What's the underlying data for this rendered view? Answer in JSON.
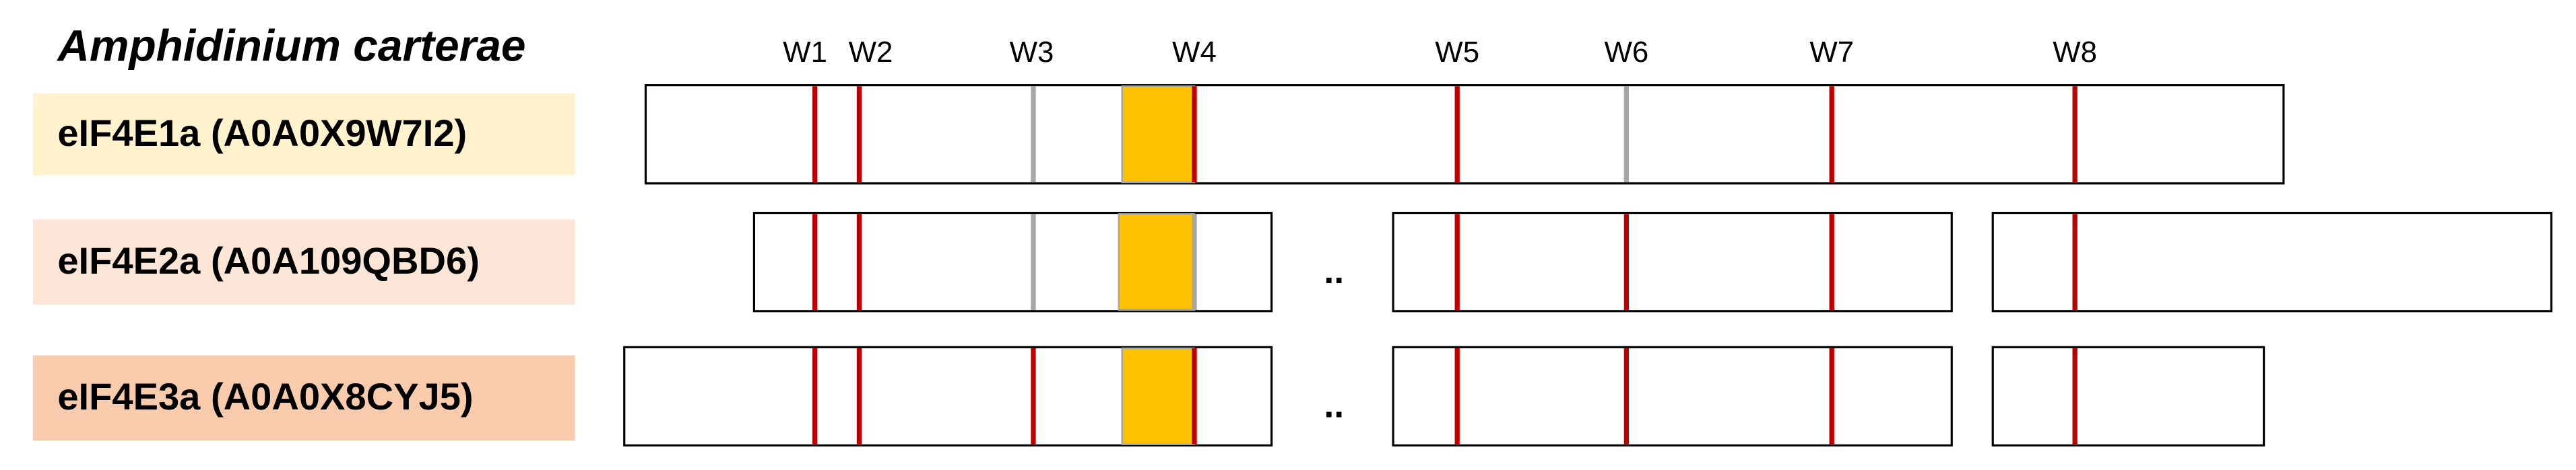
{
  "title": "Amphidinium carterae",
  "sites": [
    "W1",
    "W2",
    "W3",
    "W4",
    "W5",
    "W6",
    "W7",
    "W8"
  ],
  "rows": [
    {
      "label": "eIF4E1a (A0A0X9W7I2)",
      "color": "#fff2cc",
      "site_colors": [
        "#c00000",
        "#c00000",
        "#a6a6a6",
        "#c00000",
        "#c00000",
        "#a6a6a6",
        "#c00000",
        "#c00000"
      ]
    },
    {
      "label": "eIF4E2a (A0A109QBD6)",
      "color": "#fbe5d6",
      "ellipsis": "..",
      "site_colors": [
        "#c00000",
        "#c00000",
        "#a6a6a6",
        "#a6a6a6",
        "#c00000",
        "#c00000",
        "#c00000",
        "#c00000"
      ]
    },
    {
      "label": "eIF4E3a (A0A0X8CYJ5)",
      "color": "#f8cbad",
      "ellipsis": "..",
      "site_colors": [
        "#c00000",
        "#c00000",
        "#c00000",
        "#c00000",
        "#c00000",
        "#c00000",
        "#c00000",
        "#c00000"
      ]
    }
  ]
}
